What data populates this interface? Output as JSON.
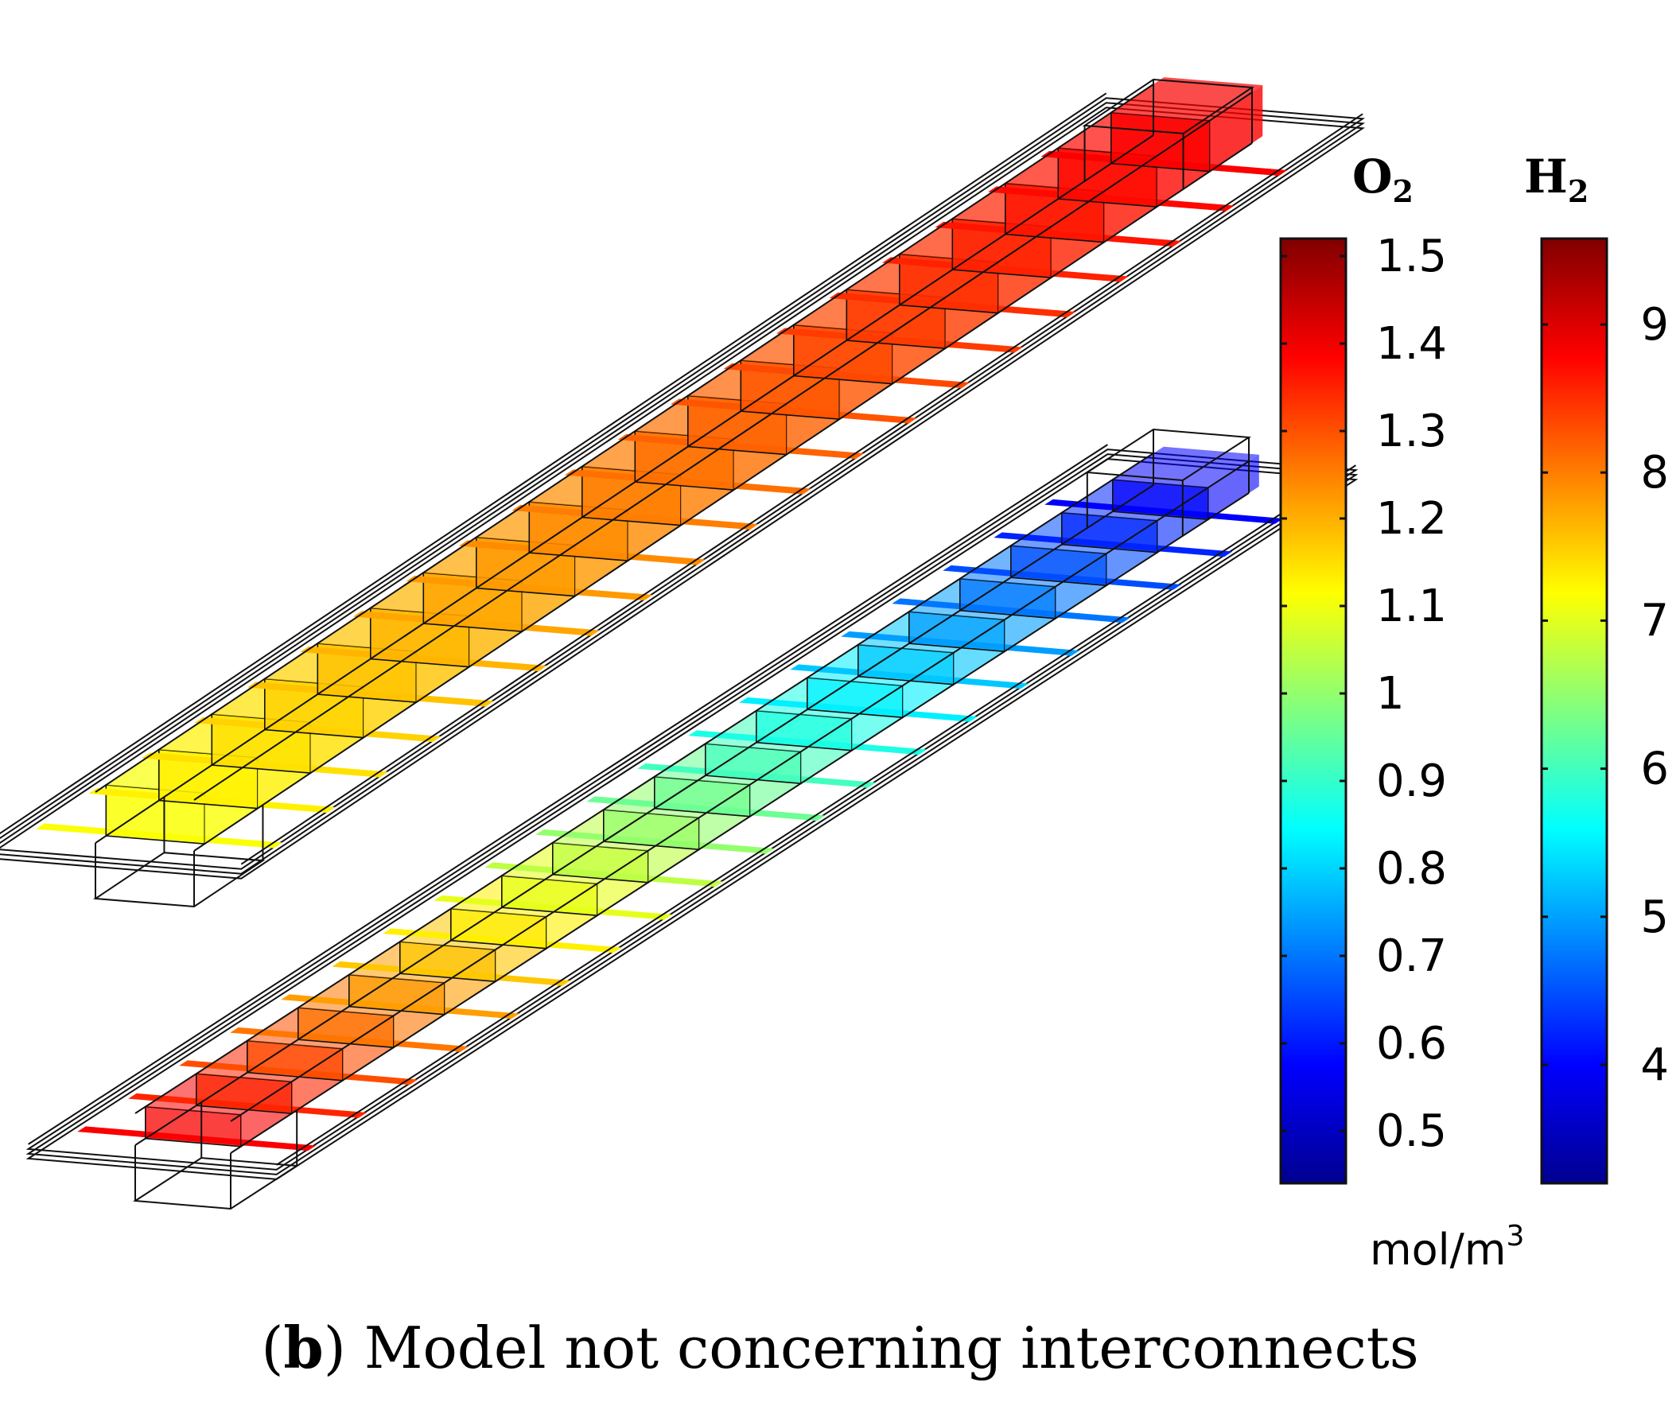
{
  "figure": {
    "caption_bold": "b",
    "caption_rest": " Model not concerning interconnects"
  },
  "colorbars": {
    "o2": {
      "label_main": "O",
      "label_sub": "2",
      "min": 0.44,
      "max": 1.52,
      "ticks": [
        {
          "value": 1.5,
          "label": "1.5"
        },
        {
          "value": 1.4,
          "label": "1.4"
        },
        {
          "value": 1.3,
          "label": "1.3"
        },
        {
          "value": 1.2,
          "label": "1.2"
        },
        {
          "value": 1.1,
          "label": "1.1"
        },
        {
          "value": 1.0,
          "label": "1"
        },
        {
          "value": 0.9,
          "label": "0.9"
        },
        {
          "value": 0.8,
          "label": "0.8"
        },
        {
          "value": 0.7,
          "label": "0.7"
        },
        {
          "value": 0.6,
          "label": "0.6"
        },
        {
          "value": 0.5,
          "label": "0.5"
        }
      ]
    },
    "h2": {
      "label_main": "H",
      "label_sub": "2",
      "min": 3.2,
      "max": 9.58,
      "ticks": [
        {
          "value": 9,
          "label": "9"
        },
        {
          "value": 8,
          "label": "8"
        },
        {
          "value": 7,
          "label": "7"
        },
        {
          "value": 6,
          "label": "6"
        },
        {
          "value": 5,
          "label": "5"
        },
        {
          "value": 4,
          "label": "4"
        }
      ]
    },
    "unit_main": "mol/m",
    "unit_sup": "3"
  },
  "channels": {
    "o2_channel_cells": 20,
    "h2_channel_cells": 20
  },
  "colors": {
    "jet": [
      "#00008f",
      "#0000ff",
      "#0080ff",
      "#00ffff",
      "#80ff80",
      "#ffff00",
      "#ff8000",
      "#ff0000",
      "#800000"
    ],
    "wire": "#111111"
  }
}
